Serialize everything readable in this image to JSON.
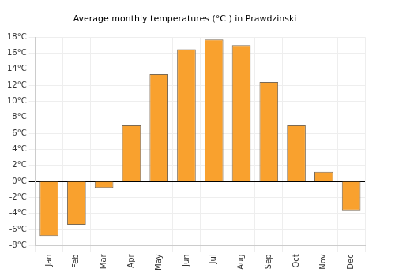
{
  "chart_data": {
    "type": "bar",
    "title": "Average monthly temperatures (°C ) in Prawdzinski",
    "categories": [
      "Jan",
      "Feb",
      "Mar",
      "Apr",
      "May",
      "Jun",
      "Jul",
      "Aug",
      "Sep",
      "Oct",
      "Nov",
      "Dec"
    ],
    "values": [
      -6.8,
      -5.4,
      -0.8,
      7.0,
      13.4,
      16.5,
      17.7,
      17.0,
      12.4,
      7.0,
      1.2,
      -3.6
    ],
    "color": "#f9a12e",
    "ylim": [
      -8,
      18
    ],
    "yticks": [
      {
        "value": -8,
        "label": "-8°C"
      },
      {
        "value": -6,
        "label": "-6°C"
      },
      {
        "value": -4,
        "label": "-4°C"
      },
      {
        "value": -2,
        "label": "-2°C"
      },
      {
        "value": 0,
        "label": "0°C"
      },
      {
        "value": 2,
        "label": "2°C"
      },
      {
        "value": 4,
        "label": "4°C"
      },
      {
        "value": 6,
        "label": "6°C"
      },
      {
        "value": 8,
        "label": "8°C"
      },
      {
        "value": 10,
        "label": "10°C"
      },
      {
        "value": 12,
        "label": "12°C"
      },
      {
        "value": 14,
        "label": "14°C"
      },
      {
        "value": 16,
        "label": "16°C"
      },
      {
        "value": 18,
        "label": "18°C"
      }
    ],
    "grid": true
  }
}
